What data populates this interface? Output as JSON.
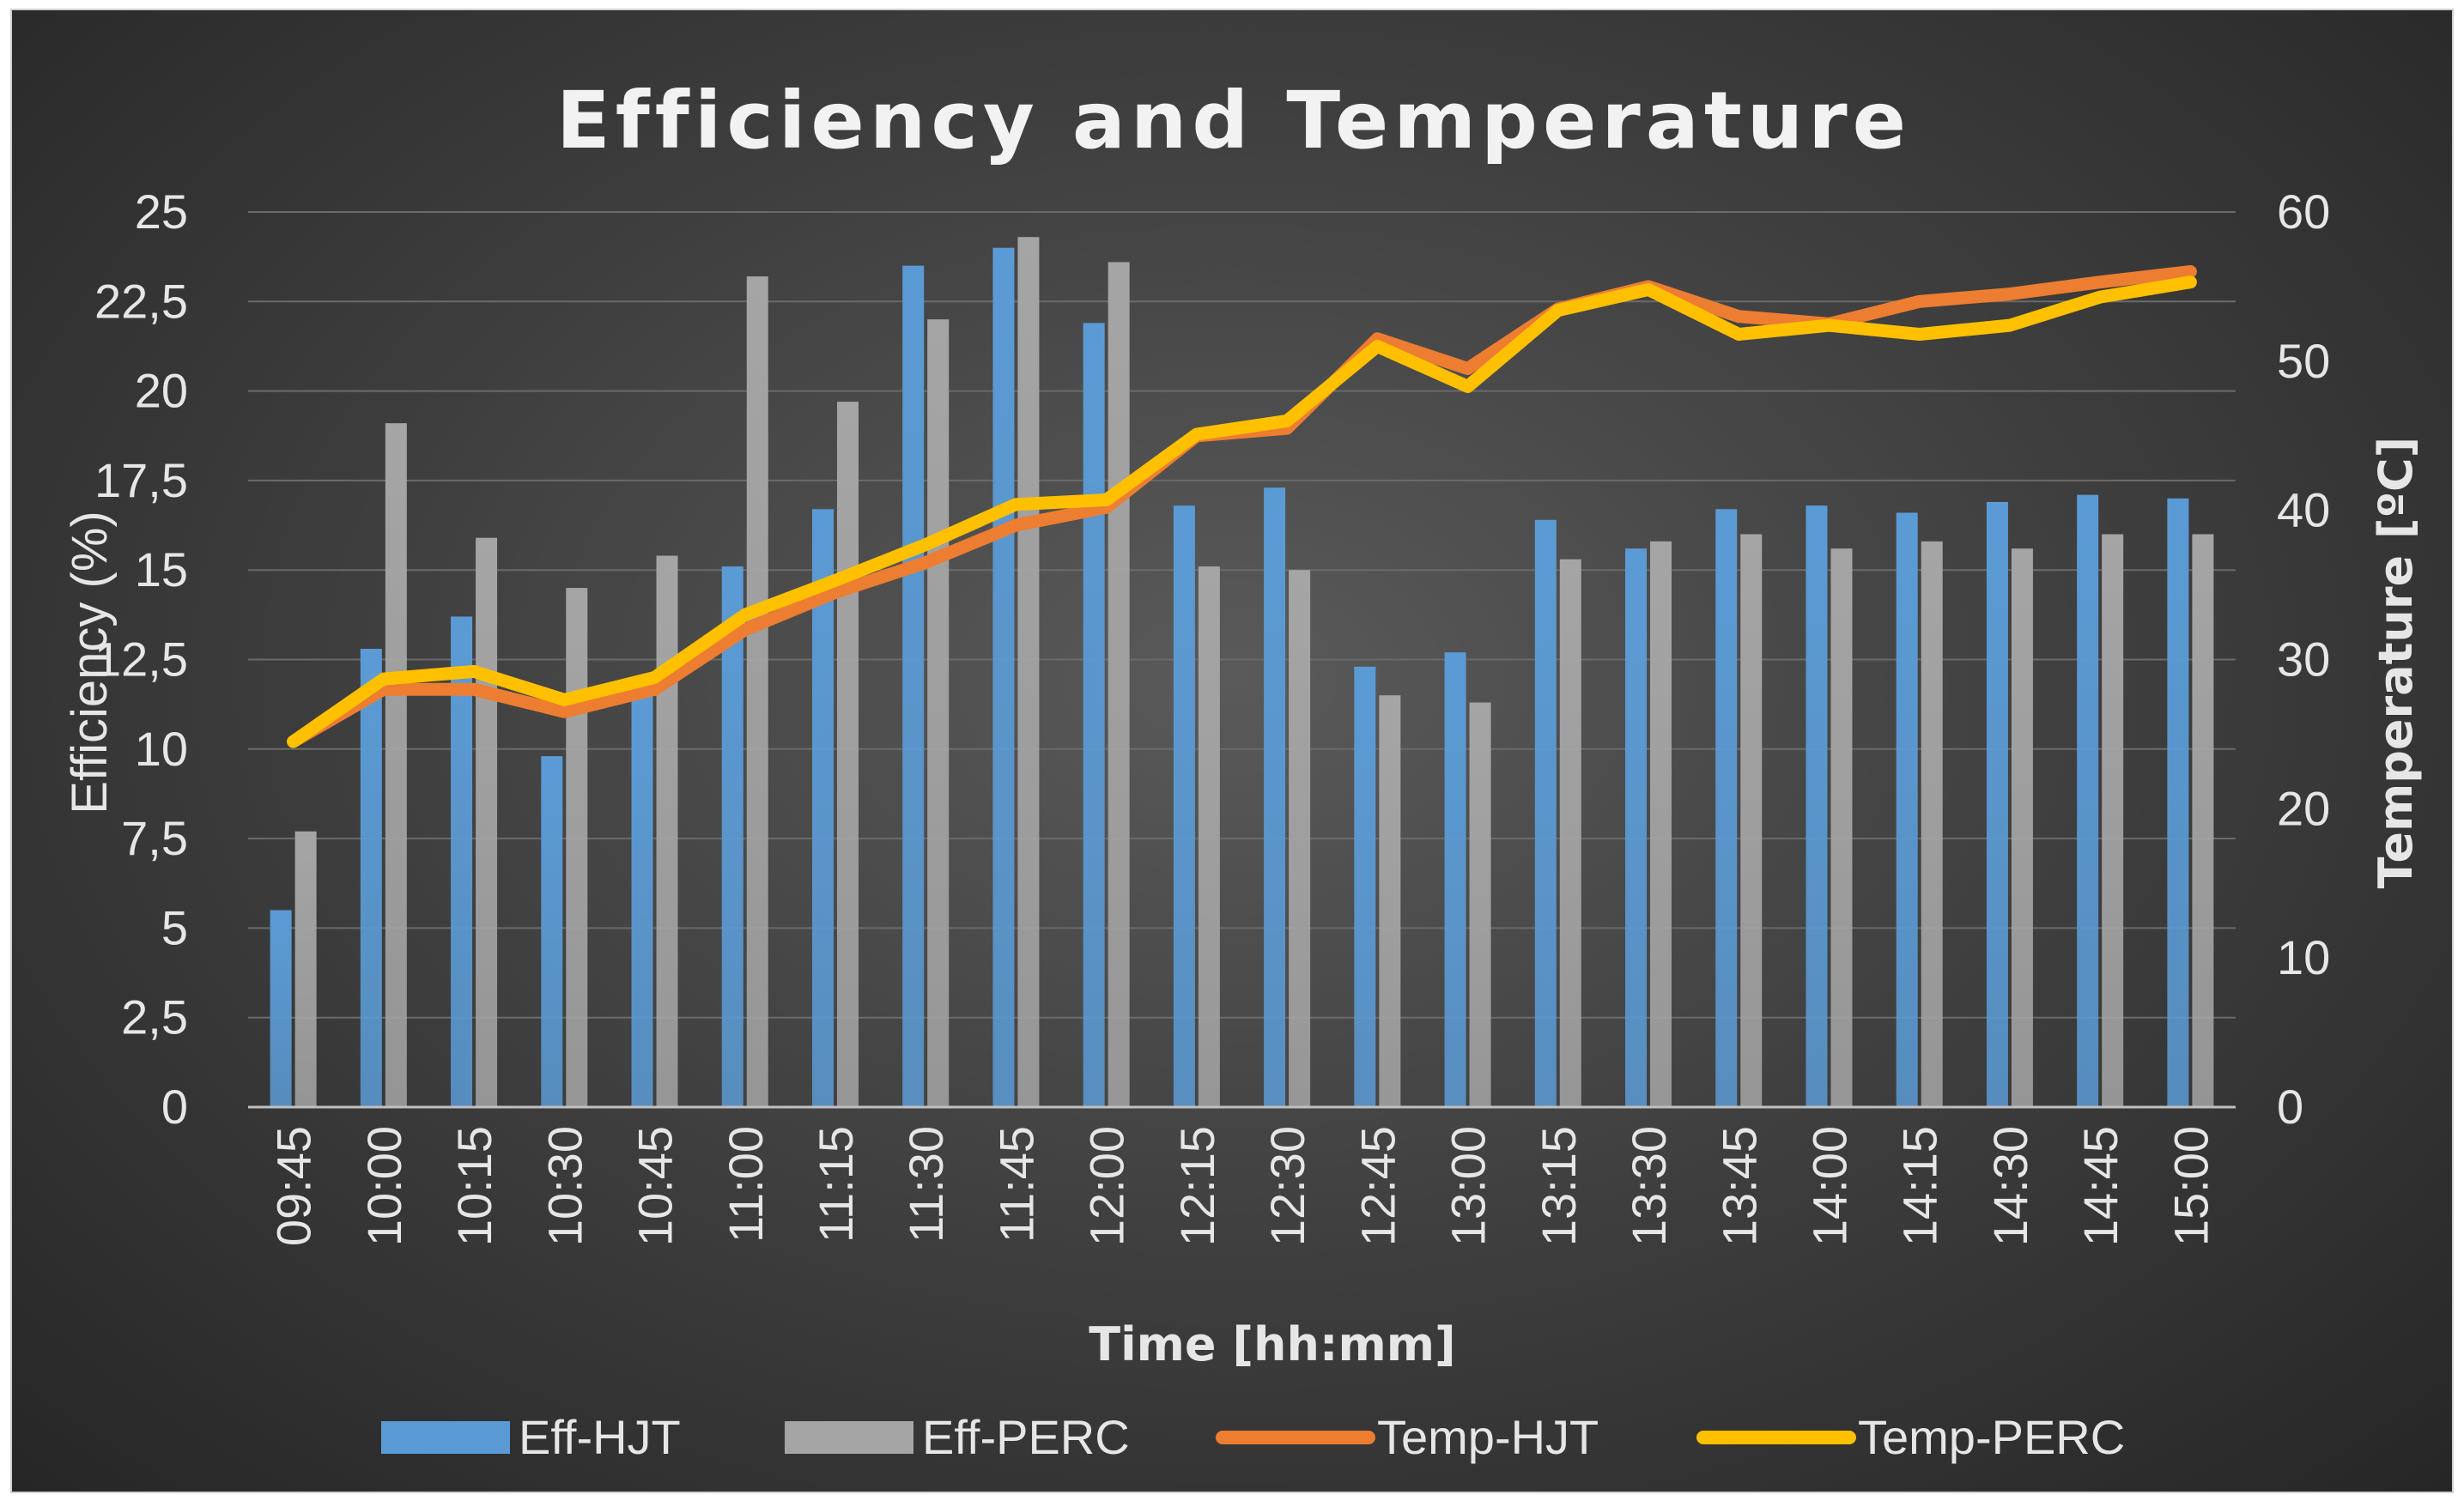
{
  "chart_data": {
    "type": "bar",
    "title": "Efficiency and Temperature",
    "xlabel": "Time [hh:mm]",
    "ylabel": "Efficiency (%)",
    "y2label": "Temperature [ºC]",
    "ylim": [
      0,
      25
    ],
    "y2lim": [
      0,
      60
    ],
    "yticks": [
      "0",
      "2,5",
      "5",
      "7,5",
      "10",
      "12,5",
      "15",
      "17,5",
      "20",
      "22,5",
      "25"
    ],
    "y2ticks": [
      "0",
      "10",
      "20",
      "30",
      "40",
      "50",
      "60"
    ],
    "grid": true,
    "legend_position": "bottom",
    "categories": [
      "09:45",
      "10:00",
      "10:15",
      "10:30",
      "10:45",
      "11:00",
      "11:15",
      "11:30",
      "11:45",
      "12:00",
      "12:15",
      "12:30",
      "12:45",
      "13:00",
      "13:15",
      "13:30",
      "13:45",
      "14:00",
      "14:15",
      "14:30",
      "14:45",
      "15:00"
    ],
    "series": [
      {
        "name": "Eff-HJT",
        "kind": "bar",
        "axis": "left",
        "color": "#5b9bd5",
        "values": [
          5.5,
          12.8,
          13.7,
          9.8,
          11.5,
          15.1,
          16.7,
          23.5,
          24.0,
          21.9,
          16.8,
          17.3,
          12.3,
          12.7,
          16.4,
          15.6,
          16.7,
          16.8,
          16.6,
          16.9,
          17.1,
          17.0
        ]
      },
      {
        "name": "Eff-PERC",
        "kind": "bar",
        "axis": "left",
        "color": "#a5a5a5",
        "values": [
          7.7,
          19.1,
          15.9,
          14.5,
          15.4,
          23.2,
          19.7,
          22.0,
          24.3,
          23.6,
          15.1,
          15.0,
          11.5,
          11.3,
          15.3,
          15.8,
          16.0,
          15.6,
          15.8,
          15.6,
          16.0,
          16.0
        ]
      },
      {
        "name": "Temp-HJT",
        "kind": "line",
        "axis": "right",
        "color": "#ed7d31",
        "values": [
          24.5,
          28.0,
          28.0,
          26.5,
          28.0,
          32.0,
          34.5,
          36.5,
          39.0,
          40.2,
          45.0,
          45.5,
          51.5,
          49.5,
          53.5,
          55.0,
          53.0,
          52.5,
          54.0,
          54.5,
          55.3,
          56.0
        ]
      },
      {
        "name": "Temp-PERC",
        "kind": "line",
        "axis": "right",
        "color": "#ffc000",
        "values": [
          24.5,
          28.7,
          29.2,
          27.3,
          28.8,
          33.0,
          35.3,
          37.7,
          40.4,
          40.7,
          45.1,
          46.0,
          51.0,
          48.3,
          53.4,
          54.8,
          51.8,
          52.4,
          51.8,
          52.4,
          54.3,
          55.3
        ]
      }
    ]
  }
}
